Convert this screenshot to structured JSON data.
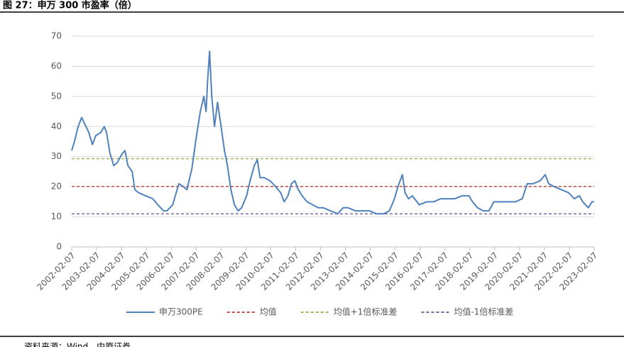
{
  "chart_data": {
    "type": "line",
    "title": "图 27：申万 300 市盈率（倍）",
    "source": "资料来源：Wind，中原证券",
    "xlim": [
      2002.1,
      2023.1
    ],
    "ylim": [
      0,
      70
    ],
    "yticks": [
      0,
      10,
      20,
      30,
      40,
      50,
      60,
      70
    ],
    "grid": true,
    "xticks": [
      {
        "value": 2002.1,
        "label": "2002-02-07"
      },
      {
        "value": 2003.1,
        "label": "2003-02-07"
      },
      {
        "value": 2004.1,
        "label": "2004-02-07"
      },
      {
        "value": 2005.1,
        "label": "2005-02-07"
      },
      {
        "value": 2006.1,
        "label": "2006-02-07"
      },
      {
        "value": 2007.1,
        "label": "2007-02-07"
      },
      {
        "value": 2008.1,
        "label": "2008-02-07"
      },
      {
        "value": 2009.1,
        "label": "2009-02-07"
      },
      {
        "value": 2010.1,
        "label": "2010-02-07"
      },
      {
        "value": 2011.1,
        "label": "2011-02-07"
      },
      {
        "value": 2012.1,
        "label": "2012-02-07"
      },
      {
        "value": 2013.1,
        "label": "2013-02-07"
      },
      {
        "value": 2014.1,
        "label": "2014-02-07"
      },
      {
        "value": 2015.1,
        "label": "2015-02-07"
      },
      {
        "value": 2016.1,
        "label": "2016-02-07"
      },
      {
        "value": 2017.1,
        "label": "2017-02-07"
      },
      {
        "value": 2018.1,
        "label": "2018-02-07"
      },
      {
        "value": 2019.1,
        "label": "2019-02-07"
      },
      {
        "value": 2020.1,
        "label": "2020-02-07"
      },
      {
        "value": 2021.1,
        "label": "2021-02-07"
      },
      {
        "value": 2022.1,
        "label": "2022-02-07"
      },
      {
        "value": 2023.1,
        "label": "2023-02-07"
      }
    ],
    "x": [
      2002.1,
      2002.21,
      2002.36,
      2002.5,
      2002.79,
      2002.93,
      2003.07,
      2003.27,
      2003.41,
      2003.5,
      2003.64,
      2003.79,
      2003.93,
      2004.13,
      2004.24,
      2004.36,
      2004.53,
      2004.64,
      2004.79,
      2005.07,
      2005.36,
      2005.56,
      2005.79,
      2005.93,
      2006.16,
      2006.3,
      2006.41,
      2006.59,
      2006.73,
      2006.93,
      2007.1,
      2007.27,
      2007.41,
      2007.5,
      2007.56,
      2007.64,
      2007.73,
      2007.84,
      2007.96,
      2008.07,
      2008.24,
      2008.36,
      2008.5,
      2008.64,
      2008.79,
      2008.93,
      2009.13,
      2009.27,
      2009.44,
      2009.56,
      2009.67,
      2009.84,
      2010.07,
      2010.3,
      2010.5,
      2010.64,
      2010.79,
      2010.93,
      2011.07,
      2011.21,
      2011.36,
      2011.56,
      2011.79,
      2012.01,
      2012.21,
      2012.5,
      2012.79,
      2013.01,
      2013.21,
      2013.5,
      2013.79,
      2014.07,
      2014.36,
      2014.64,
      2014.87,
      2015.07,
      2015.21,
      2015.39,
      2015.5,
      2015.64,
      2015.79,
      2016.07,
      2016.36,
      2016.64,
      2016.93,
      2017.21,
      2017.5,
      2017.79,
      2018.07,
      2018.21,
      2018.41,
      2018.64,
      2018.87,
      2019.07,
      2019.36,
      2019.64,
      2019.93,
      2020.21,
      2020.41,
      2020.64,
      2020.93,
      2021.13,
      2021.27,
      2021.5,
      2021.79,
      2022.07,
      2022.3,
      2022.5,
      2022.64,
      2022.87,
      2023.01,
      2023.1
    ],
    "series": [
      {
        "name": "申万300PE",
        "color": "#4f81bd",
        "values": [
          32,
          35,
          40,
          43,
          38,
          34,
          37,
          38,
          40,
          38,
          31,
          27,
          28,
          31,
          32,
          27,
          25,
          19,
          18,
          17,
          16,
          14,
          12,
          12,
          14,
          18,
          21,
          20,
          19,
          26,
          36,
          45,
          50,
          45,
          55,
          65,
          50,
          40,
          48,
          42,
          32,
          27,
          19,
          14,
          12,
          13,
          17,
          22,
          27,
          29,
          23,
          23,
          22,
          20,
          18,
          15,
          17,
          21,
          22,
          19,
          17,
          15,
          14,
          13,
          13,
          12,
          11,
          13,
          13,
          12,
          12,
          12,
          11,
          11,
          12,
          16,
          20,
          24,
          18,
          16,
          17,
          14,
          15,
          15,
          16,
          16,
          16,
          17,
          17,
          15,
          13,
          12,
          12,
          15,
          15,
          15,
          15,
          16,
          21,
          21,
          22,
          24,
          21,
          20,
          19,
          18,
          16,
          17,
          15,
          13,
          15,
          15
        ]
      }
    ],
    "hlines": [
      {
        "name": "均值",
        "color": "#c0504d",
        "value": 20.1
      },
      {
        "name": "均值+1倍标准差",
        "color": "#9bbb59",
        "value": 29.3
      },
      {
        "name": "均值-1倍标准差",
        "color": "#8064a2",
        "value": 11.0
      }
    ]
  }
}
